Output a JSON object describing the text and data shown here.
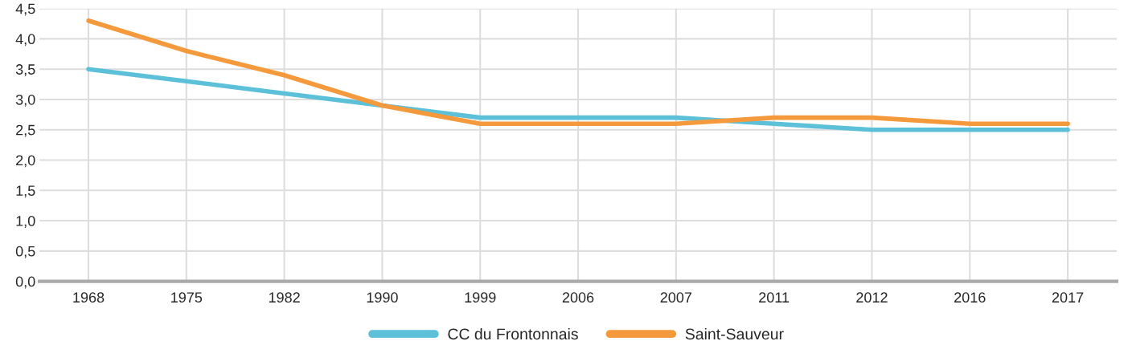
{
  "chart_data": {
    "type": "line",
    "categories": [
      "1968",
      "1975",
      "1982",
      "1990",
      "1999",
      "2006",
      "2007",
      "2011",
      "2012",
      "2016",
      "2017"
    ],
    "series": [
      {
        "name": "CC du Frontonnais",
        "color": "#5bc0d8",
        "values": [
          3.5,
          3.3,
          3.1,
          2.9,
          2.7,
          2.7,
          2.7,
          2.6,
          2.5,
          2.5,
          2.5
        ]
      },
      {
        "name": "Saint-Sauveur",
        "color": "#f59a3c",
        "values": [
          4.3,
          3.8,
          3.4,
          2.9,
          2.6,
          2.6,
          2.6,
          2.7,
          2.7,
          2.6,
          2.6
        ]
      }
    ],
    "ylim": [
      0,
      4.5
    ],
    "yticks": [
      {
        "value": 0,
        "label": "0,0"
      },
      {
        "value": 0.5,
        "label": "0,5"
      },
      {
        "value": 1,
        "label": "1,0"
      },
      {
        "value": 1.5,
        "label": "1,5"
      },
      {
        "value": 2,
        "label": "2,0"
      },
      {
        "value": 2.5,
        "label": "2,5"
      },
      {
        "value": 3,
        "label": "3,0"
      },
      {
        "value": 3.5,
        "label": "3,5"
      },
      {
        "value": 4,
        "label": "4,0"
      },
      {
        "value": 4.5,
        "label": "4,5"
      }
    ],
    "grid": true,
    "legend": "bottom",
    "marker": "none",
    "line_style": "solid"
  }
}
